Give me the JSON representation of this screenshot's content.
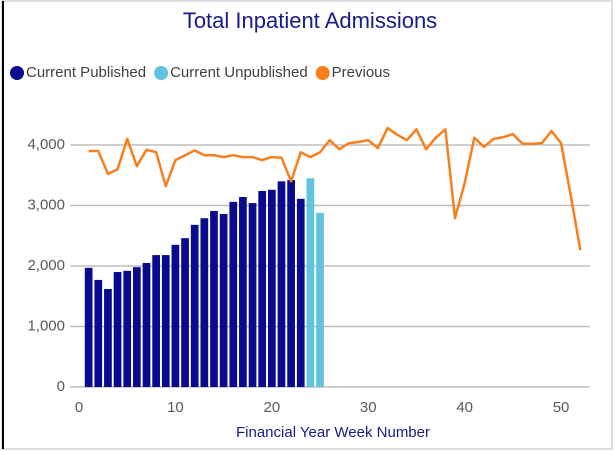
{
  "chart_data": {
    "type": "combo",
    "title": "Total Inpatient Admissions",
    "xlabel": "Financial Year Week Number",
    "xlim": [
      0,
      53
    ],
    "xticks": [
      0,
      10,
      20,
      30,
      40,
      50
    ],
    "ylim": [
      0,
      5000
    ],
    "yticks": [
      0,
      {
        "value": 1000,
        "label": "1,000"
      },
      {
        "value": 2000,
        "label": "2,000"
      },
      {
        "value": 3000,
        "label": "3,000"
      },
      {
        "value": 4000,
        "label": "4,000"
      }
    ],
    "grid": true,
    "legend": "top-left",
    "series": [
      {
        "name": "Current Published",
        "type": "bar",
        "color": "#0a0a8c",
        "x": [
          1,
          2,
          3,
          4,
          5,
          6,
          7,
          8,
          9,
          10,
          11,
          12,
          13,
          14,
          15,
          16,
          17,
          18,
          19,
          20,
          21,
          22,
          23
        ],
        "values": [
          1970,
          1770,
          1620,
          1900,
          1920,
          1980,
          2050,
          2180,
          2180,
          2350,
          2460,
          2680,
          2790,
          2910,
          2860,
          3060,
          3140,
          3040,
          3240,
          3260,
          3400,
          3420,
          3110
        ]
      },
      {
        "name": "Current Unpublished",
        "type": "bar",
        "color": "#5fc4dc",
        "x": [
          24,
          25
        ],
        "values": [
          3450,
          2880
        ]
      },
      {
        "name": "Previous",
        "type": "line",
        "color": "#f77f1e",
        "x": [
          1,
          2,
          3,
          4,
          5,
          6,
          7,
          8,
          9,
          10,
          11,
          12,
          13,
          14,
          15,
          16,
          17,
          18,
          19,
          20,
          21,
          22,
          23,
          24,
          25,
          26,
          27,
          28,
          29,
          30,
          31,
          32,
          33,
          34,
          35,
          36,
          37,
          38,
          39,
          40,
          41,
          42,
          43,
          44,
          45,
          46,
          47,
          48,
          49,
          50,
          51,
          52
        ],
        "values": [
          3900,
          3900,
          3520,
          3600,
          4100,
          3650,
          3920,
          3880,
          3320,
          3750,
          3830,
          3910,
          3830,
          3830,
          3800,
          3830,
          3800,
          3800,
          3750,
          3800,
          3790,
          3400,
          3880,
          3800,
          3880,
          4080,
          3930,
          4030,
          4050,
          4080,
          3950,
          4280,
          4170,
          4080,
          4260,
          3930,
          4120,
          4260,
          2790,
          3370,
          4120,
          3970,
          4100,
          4130,
          4180,
          4020,
          4020,
          4030,
          4230,
          4030,
          3170,
          2260
        ]
      }
    ]
  }
}
